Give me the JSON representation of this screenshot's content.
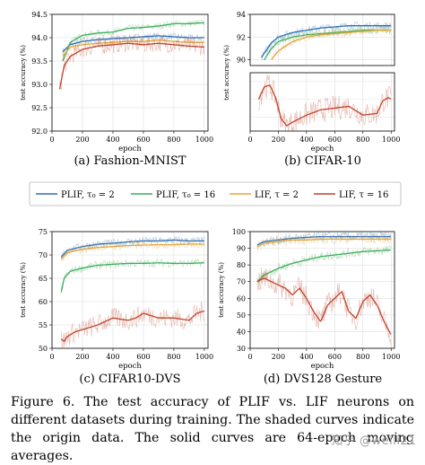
{
  "figure": {
    "caption": "Figure 6. The test accuracy of PLIF vs. LIF neurons on different datasets during training. The shaded curves indicate the origin data. The solid curves are 64-epoch moving averages.",
    "watermark": "知乎 @weili21"
  },
  "legend": {
    "placement": "center, between top and bottom rows",
    "entries": [
      {
        "label": "PLIF, τ₀ = 2",
        "color": "#2f6fb3"
      },
      {
        "label": "PLIF, τ₀ = 16",
        "color": "#3fae5a"
      },
      {
        "label": "LIF, τ = 2",
        "color": "#e3a640"
      },
      {
        "label": "LIF, τ = 16",
        "color": "#c0432c"
      }
    ]
  },
  "chart_data": [
    {
      "type": "line",
      "caption": "(a) Fashion-MNIST",
      "xlabel": "epoch",
      "ylabel": "test accuracy (%)",
      "xlim": [
        0,
        1024
      ],
      "ylim": [
        92.0,
        94.5
      ],
      "xticks": [
        0,
        200,
        400,
        600,
        800,
        1000
      ],
      "yticks": [
        92.0,
        92.5,
        93.0,
        93.5,
        94.0,
        94.5
      ],
      "ytick_labels": [
        "92.0",
        "92.5",
        "93.0",
        "93.5",
        "94.0",
        "94.5"
      ],
      "grid": true,
      "series": [
        {
          "name": "PLIF, τ₀ = 2",
          "x": [
            70,
            120,
            200,
            300,
            400,
            500,
            600,
            700,
            800,
            900,
            1000
          ],
          "values": [
            93.7,
            93.85,
            93.92,
            93.96,
            93.98,
            94.0,
            94.02,
            94.04,
            94.02,
            94.0,
            94.0
          ]
        },
        {
          "name": "PLIF, τ₀ = 16",
          "x": [
            70,
            120,
            200,
            300,
            400,
            500,
            600,
            700,
            800,
            900,
            1000
          ],
          "values": [
            93.5,
            93.9,
            94.05,
            94.1,
            94.12,
            94.2,
            94.22,
            94.25,
            94.3,
            94.3,
            94.32
          ]
        },
        {
          "name": "LIF, τ = 2",
          "x": [
            70,
            120,
            200,
            300,
            400,
            500,
            600,
            700,
            800,
            900,
            1000
          ],
          "values": [
            93.6,
            93.8,
            93.85,
            93.88,
            93.9,
            93.92,
            93.92,
            93.95,
            93.92,
            93.9,
            93.9
          ]
        },
        {
          "name": "LIF, τ = 16",
          "x": [
            50,
            80,
            120,
            200,
            300,
            400,
            500,
            600,
            700,
            800,
            900,
            1000
          ],
          "values": [
            92.9,
            93.4,
            93.6,
            93.75,
            93.82,
            93.85,
            93.88,
            93.85,
            93.88,
            93.85,
            93.82,
            93.8
          ]
        }
      ]
    },
    {
      "type": "line",
      "caption": "(b) CIFAR-10",
      "xlabel": "epoch",
      "ylabel": "test accuracy (%)",
      "broken_axis": true,
      "xlim": [
        0,
        1024
      ],
      "xticks": [
        0,
        200,
        400,
        600,
        800,
        1000
      ],
      "upper": {
        "ylim": [
          89.5,
          94
        ],
        "yticks": [
          90,
          92,
          94
        ]
      },
      "lower": {
        "ylim": [
          7,
          40
        ],
        "yticks": []
      },
      "grid": true,
      "series": [
        {
          "name": "PLIF, τ₀ = 2",
          "x": [
            80,
            150,
            200,
            300,
            400,
            500,
            600,
            700,
            800,
            900,
            1000
          ],
          "values": [
            90.2,
            91.5,
            92.0,
            92.4,
            92.6,
            92.8,
            92.9,
            93.0,
            93.0,
            93.0,
            93.0
          ]
        },
        {
          "name": "PLIF, τ₀ = 16",
          "x": [
            100,
            150,
            200,
            300,
            400,
            500,
            600,
            700,
            800,
            900,
            1000
          ],
          "values": [
            90.0,
            91.0,
            91.6,
            92.0,
            92.2,
            92.3,
            92.4,
            92.5,
            92.6,
            92.6,
            92.6
          ]
        },
        {
          "name": "LIF, τ = 2",
          "x": [
            150,
            200,
            300,
            400,
            500,
            600,
            700,
            800,
            900,
            1000
          ],
          "values": [
            90.0,
            90.8,
            91.6,
            92.0,
            92.2,
            92.3,
            92.4,
            92.5,
            92.6,
            92.6
          ]
        },
        {
          "name": "LIF, τ = 16",
          "x": [
            60,
            100,
            140,
            180,
            220,
            260,
            300,
            400,
            500,
            600,
            700,
            800,
            900,
            940,
            980,
            1000
          ],
          "values": [
            25,
            32,
            33,
            26,
            14,
            10,
            12,
            16,
            19,
            20,
            21,
            16,
            17,
            24,
            26,
            25
          ]
        }
      ]
    },
    {
      "type": "line",
      "caption": "(c) CIFAR10-DVS",
      "xlabel": "epoch",
      "ylabel": "test accuracy (%)",
      "xlim": [
        0,
        1024
      ],
      "ylim": [
        50,
        75
      ],
      "xticks": [
        0,
        200,
        400,
        600,
        800,
        1000
      ],
      "yticks": [
        50,
        55,
        60,
        65,
        70,
        75
      ],
      "grid": true,
      "series": [
        {
          "name": "PLIF, τ₀ = 2",
          "x": [
            60,
            100,
            200,
            300,
            400,
            500,
            600,
            700,
            800,
            900,
            1000
          ],
          "values": [
            69.5,
            71.0,
            71.8,
            72.3,
            72.5,
            72.8,
            73.0,
            73.0,
            73.2,
            73.0,
            73.0
          ]
        },
        {
          "name": "PLIF, τ₀ = 16",
          "x": [
            60,
            80,
            120,
            200,
            300,
            400,
            500,
            600,
            700,
            800,
            900,
            1000
          ],
          "values": [
            62,
            65,
            66.5,
            67.2,
            67.8,
            68.0,
            68.2,
            68.2,
            68.3,
            68.2,
            68.2,
            68.3
          ]
        },
        {
          "name": "LIF, τ = 2",
          "x": [
            60,
            100,
            200,
            300,
            400,
            500,
            600,
            700,
            800,
            900,
            1000
          ],
          "values": [
            69.0,
            70.5,
            71.2,
            71.6,
            71.8,
            72.0,
            72.1,
            72.2,
            72.2,
            72.3,
            72.3
          ]
        },
        {
          "name": "LIF, τ = 16",
          "x": [
            60,
            80,
            100,
            150,
            200,
            300,
            400,
            500,
            550,
            600,
            700,
            800,
            900,
            950,
            1000
          ],
          "values": [
            52.0,
            51.5,
            52.5,
            53.5,
            54.0,
            55.0,
            56.5,
            56.0,
            56.5,
            57.5,
            56.5,
            56.5,
            56.0,
            57.5,
            58.0
          ]
        }
      ]
    },
    {
      "type": "line",
      "caption": "(d) DVS128 Gesture",
      "xlabel": "epoch",
      "ylabel": "test accuracy (%)",
      "xlim": [
        0,
        1024
      ],
      "ylim": [
        30,
        100
      ],
      "xticks": [
        0,
        200,
        400,
        600,
        800,
        1000
      ],
      "yticks": [
        30,
        40,
        50,
        60,
        70,
        80,
        90,
        100
      ],
      "grid": true,
      "series": [
        {
          "name": "PLIF, τ₀ = 2",
          "x": [
            50,
            100,
            200,
            300,
            400,
            500,
            600,
            700,
            800,
            900,
            1000
          ],
          "values": [
            92,
            94,
            95,
            96,
            96.5,
            97,
            97,
            97,
            97,
            97,
            97
          ]
        },
        {
          "name": "PLIF, τ₀ = 16",
          "x": [
            50,
            100,
            200,
            300,
            400,
            500,
            600,
            700,
            800,
            900,
            1000
          ],
          "values": [
            70,
            74,
            78,
            81,
            83,
            85,
            86,
            87,
            88,
            88.5,
            89
          ]
        },
        {
          "name": "LIF, τ = 2",
          "x": [
            50,
            100,
            200,
            300,
            400,
            500,
            600,
            700,
            800,
            900,
            1000
          ],
          "values": [
            91,
            93,
            94,
            95,
            95,
            95.5,
            95.5,
            95.5,
            95.5,
            95.5,
            95.5
          ]
        },
        {
          "name": "LIF, τ = 16",
          "x": [
            50,
            100,
            150,
            200,
            250,
            300,
            350,
            400,
            450,
            500,
            550,
            600,
            650,
            700,
            750,
            800,
            850,
            900,
            950,
            1000
          ],
          "values": [
            70,
            72,
            70,
            68,
            66,
            62,
            66,
            60,
            52,
            46,
            56,
            60,
            64,
            52,
            48,
            58,
            62,
            56,
            46,
            38
          ]
        }
      ]
    }
  ]
}
